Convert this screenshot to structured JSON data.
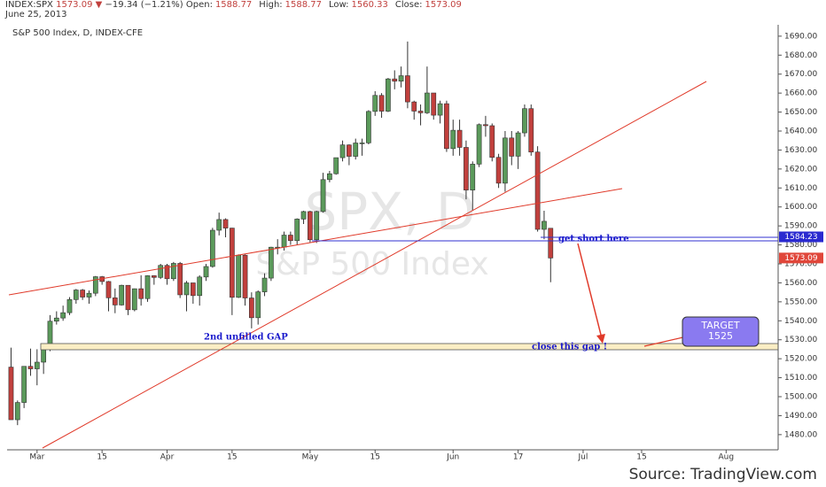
{
  "header": {
    "symbol": "INDEX:SPX",
    "price": "1573.09",
    "change": "−19.34 (−1.21%)",
    "fields": [
      {
        "label": "Open:",
        "value": "1588.77"
      },
      {
        "label": "High:",
        "value": "1588.77"
      },
      {
        "label": "Low:",
        "value": "1560.33"
      },
      {
        "label": "Close:",
        "value": "1573.09"
      }
    ],
    "date": "June 25, 2013"
  },
  "chart_data": {
    "type": "candlestick",
    "title": "S&P 500 Index, D, INDEX-CFE",
    "watermark": "SPX, D",
    "watermark_sub": "S&P 500 Index",
    "annotations": [
      "get short here",
      "close this gap !",
      "2nd unfilled GAP",
      "TARGET",
      "1525"
    ],
    "source": "Source: TradingView.com",
    "up_color": "#5b9a5b",
    "down_color": "#c1403d",
    "grid": false,
    "xlim": [
      -5.7,
      114
    ],
    "ylim": [
      1472,
      1696
    ],
    "xticks": [
      {
        "value": 0,
        "label": "Mar"
      },
      {
        "value": 10,
        "label": "15"
      },
      {
        "value": 20,
        "label": "Apr"
      },
      {
        "value": 30,
        "label": "15"
      },
      {
        "value": 42,
        "label": "May"
      },
      {
        "value": 52,
        "label": "15"
      },
      {
        "value": 64,
        "label": "Jun"
      },
      {
        "value": 74,
        "label": "17"
      },
      {
        "value": 84,
        "label": "Jul"
      },
      {
        "value": 93,
        "label": "15"
      },
      {
        "value": 106,
        "label": "Aug"
      }
    ],
    "yticks": [
      {
        "value": 1480,
        "label": "1480.00"
      },
      {
        "value": 1490,
        "label": "1490.00"
      },
      {
        "value": 1500,
        "label": "1500.00"
      },
      {
        "value": 1510,
        "label": "1510.00"
      },
      {
        "value": 1520,
        "label": "1520.00"
      },
      {
        "value": 1530,
        "label": "1530.00"
      },
      {
        "value": 1540,
        "label": "1540.00"
      },
      {
        "value": 1550,
        "label": "1550.00"
      },
      {
        "value": 1560,
        "label": "1560.00"
      },
      {
        "value": 1570,
        "label": "1570.00"
      },
      {
        "value": 1580,
        "label": "1580.00"
      },
      {
        "value": 1590,
        "label": "1590.00"
      },
      {
        "value": 1600,
        "label": "1600.00"
      },
      {
        "value": 1610,
        "label": "1610.00"
      },
      {
        "value": 1620,
        "label": "1620.00"
      },
      {
        "value": 1630,
        "label": "1630.00"
      },
      {
        "value": 1640,
        "label": "1640.00"
      },
      {
        "value": 1650,
        "label": "1650.00"
      },
      {
        "value": 1660,
        "label": "1660.00"
      },
      {
        "value": 1670,
        "label": "1670.00"
      },
      {
        "value": 1680,
        "label": "1680.00"
      },
      {
        "value": 1690,
        "label": "1690.00"
      }
    ],
    "price_tags": [
      {
        "value": 1584.23,
        "color": "#2a2ad0"
      },
      {
        "value": 1573.09,
        "color": "#e0463a"
      }
    ],
    "x": [
      -4,
      -3,
      -2,
      -1,
      0,
      1,
      2,
      3,
      4,
      5,
      6,
      7,
      8,
      9,
      10,
      11,
      12,
      13,
      14,
      15,
      16,
      17,
      18,
      19,
      20,
      21,
      22,
      23,
      24,
      25,
      26,
      27,
      28,
      29,
      30,
      31,
      32,
      33,
      34,
      35,
      36,
      37,
      38,
      39,
      40,
      41,
      42,
      43,
      44,
      45,
      46,
      47,
      48,
      49,
      50,
      51,
      52,
      53,
      54,
      55,
      56,
      57,
      58,
      59,
      60,
      61,
      62,
      63,
      64,
      65,
      66,
      67,
      68,
      69,
      70,
      71,
      72,
      73,
      74,
      75,
      76,
      77,
      78,
      79
    ],
    "open": [
      1515.6,
      1487.85,
      1496.94,
      1515.99,
      1514.68,
      1518.2,
      1525.2,
      1539.79,
      1541.46,
      1544.26,
      1551.18,
      1556.22,
      1552.48,
      1554.52,
      1563.23,
      1560.7,
      1552.1,
      1548.34,
      1558.71,
      1545.8,
      1556.89,
      1551.69,
      1563.77,
      1562.85,
      1569.19,
      1562.17,
      1570.25,
      1553.69,
      1559.98,
      1553.28,
      1563.07,
      1568.61,
      1587.73,
      1593.37,
      1588.85,
      1552.36,
      1574.57,
      1552.01,
      1541.61,
      1555.25,
      1562.5,
      1578.78,
      1578.79,
      1585.16,
      1582.24,
      1593.61,
      1597.57,
      1582.7,
      1597.59,
      1614.42,
      1617.5,
      1625.96,
      1632.69,
      1626.67,
      1633.7,
      1633.77,
      1650.34,
      1658.78,
      1650.47,
      1667.47,
      1666.29,
      1669.16,
      1655.35,
      1650.51,
      1649.6,
      1660.06,
      1648.36,
      1654.41,
      1630.74,
      1640.42,
      1631.38,
      1608.9,
      1622.56,
      1643.38,
      1642.81,
      1626.13,
      1612.52,
      1636.36,
      1626.73,
      1639.04,
      1651.81,
      1628.93,
      1588.19,
      1588.77
    ],
    "high": [
      1525.84,
      1498.0,
      1516.0,
      1525.34,
      1525.0,
      1526.0,
      1543.0,
      1545.0,
      1548.0,
      1552.48,
      1556.77,
      1556.77,
      1556.0,
      1563.62,
      1563.62,
      1561.0,
      1557.0,
      1559.0,
      1558.71,
      1557.0,
      1564.0,
      1564.0,
      1564.0,
      1570.0,
      1570.0,
      1571.0,
      1571.0,
      1561.0,
      1560.0,
      1564.0,
      1570.0,
      1589.0,
      1597.0,
      1594.0,
      1589.0,
      1575.0,
      1575.0,
      1555.0,
      1556.0,
      1565.0,
      1579.0,
      1583.0,
      1587.0,
      1587.0,
      1594.0,
      1598.0,
      1598.0,
      1598.0,
      1618.0,
      1619.0,
      1626.0,
      1635.0,
      1633.0,
      1636.0,
      1636.0,
      1651.0,
      1661.0,
      1660.0,
      1668.0,
      1672.0,
      1674.0,
      1687.18,
      1656.0,
      1654.0,
      1674.0,
      1660.0,
      1656.0,
      1656.0,
      1646.0,
      1646.0,
      1635.0,
      1624.0,
      1644.0,
      1648.0,
      1644.0,
      1628.0,
      1640.0,
      1640.0,
      1640.0,
      1654.0,
      1654.0,
      1632.0,
      1598.0,
      1588.77
    ],
    "low": [
      1487.85,
      1485.0,
      1494.0,
      1511.0,
      1506.0,
      1512.0,
      1524.0,
      1538.0,
      1540.0,
      1543.0,
      1549.0,
      1551.0,
      1549.0,
      1553.0,
      1559.0,
      1545.0,
      1544.0,
      1548.0,
      1543.0,
      1545.0,
      1548.0,
      1550.0,
      1559.0,
      1562.0,
      1559.0,
      1561.0,
      1552.0,
      1545.0,
      1549.0,
      1548.0,
      1561.0,
      1568.0,
      1585.0,
      1584.0,
      1543.0,
      1552.0,
      1548.0,
      1536.0,
      1538.0,
      1553.0,
      1561.0,
      1575.0,
      1577.0,
      1580.0,
      1580.0,
      1591.0,
      1581.0,
      1581.0,
      1597.0,
      1613.0,
      1617.0,
      1624.0,
      1622.0,
      1625.0,
      1627.0,
      1633.0,
      1648.0,
      1647.0,
      1650.0,
      1662.0,
      1663.0,
      1652.0,
      1646.0,
      1643.0,
      1649.0,
      1646.0,
      1644.0,
      1629.0,
      1627.0,
      1627.0,
      1604.0,
      1598.0,
      1621.0,
      1637.0,
      1624.0,
      1610.0,
      1608.0,
      1622.0,
      1620.0,
      1637.0,
      1627.0,
      1587.0,
      1583.0,
      1560.33
    ],
    "close": [
      1487.85,
      1496.94,
      1515.99,
      1514.68,
      1518.2,
      1525.2,
      1539.79,
      1541.46,
      1544.26,
      1551.18,
      1556.22,
      1552.48,
      1554.52,
      1563.23,
      1560.7,
      1552.1,
      1548.34,
      1558.71,
      1545.8,
      1556.89,
      1551.69,
      1563.77,
      1562.85,
      1569.19,
      1562.17,
      1570.25,
      1553.69,
      1559.98,
      1553.28,
      1563.07,
      1568.61,
      1587.73,
      1593.37,
      1588.85,
      1552.36,
      1574.57,
      1552.01,
      1541.61,
      1555.25,
      1562.5,
      1578.78,
      1578.79,
      1585.16,
      1582.24,
      1593.61,
      1597.57,
      1582.7,
      1597.59,
      1614.42,
      1617.5,
      1625.96,
      1632.69,
      1626.67,
      1633.7,
      1633.77,
      1650.34,
      1658.78,
      1650.47,
      1667.47,
      1666.29,
      1669.16,
      1655.35,
      1650.51,
      1649.6,
      1660.06,
      1648.36,
      1654.41,
      1630.74,
      1640.42,
      1631.38,
      1608.9,
      1622.56,
      1643.38,
      1642.81,
      1626.13,
      1612.52,
      1636.36,
      1626.73,
      1639.04,
      1651.81,
      1628.93,
      1588.19,
      1592.43,
      1573.09
    ]
  }
}
